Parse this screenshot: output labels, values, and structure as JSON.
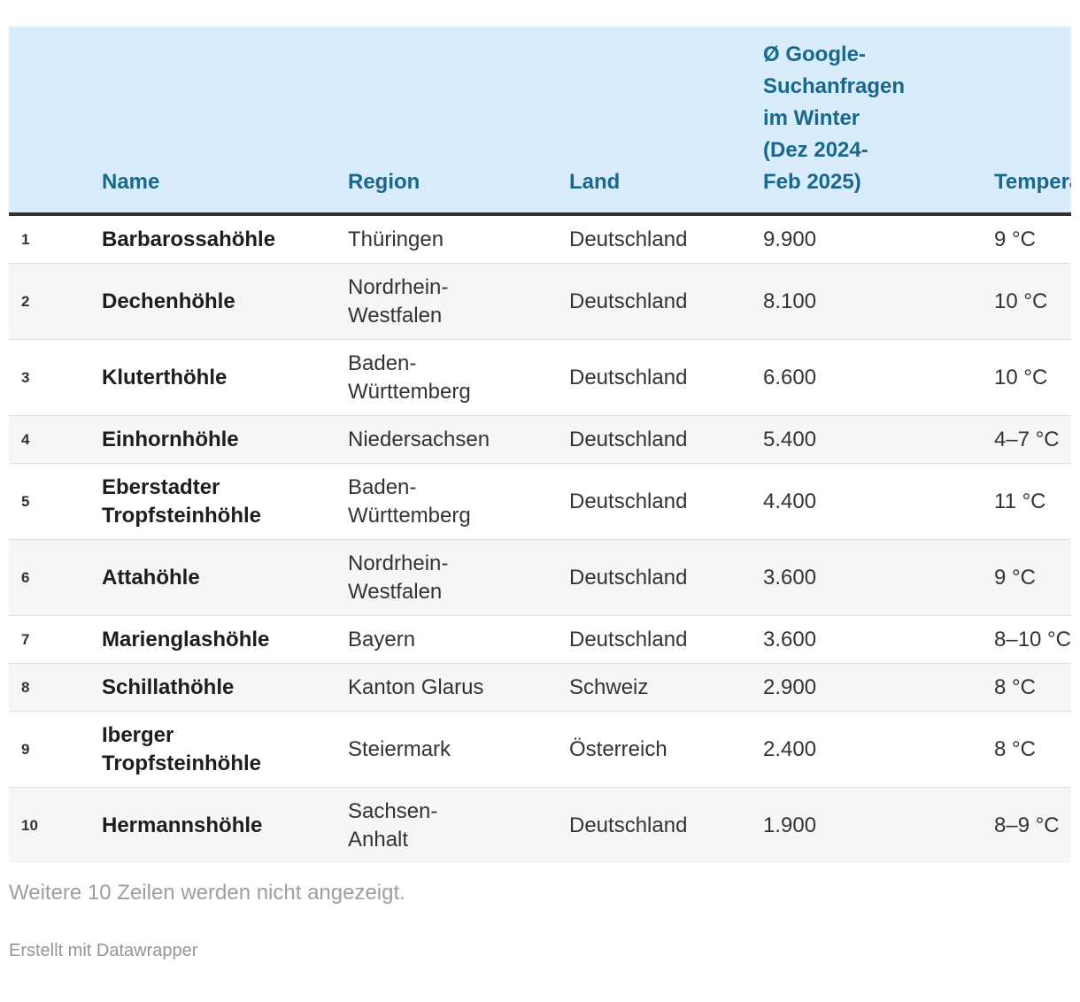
{
  "table": {
    "columns": [
      {
        "key": "rank",
        "label": ""
      },
      {
        "key": "name",
        "label": "Name"
      },
      {
        "key": "region",
        "label": "Region"
      },
      {
        "key": "land",
        "label": "Land"
      },
      {
        "key": "searches",
        "label": "Ø Google-\nSuchanfragen\nim Winter\n(Dez 2024-\nFeb 2025)"
      },
      {
        "key": "temp",
        "label": "Temperatur"
      }
    ],
    "rows": [
      {
        "rank": "1",
        "name": "Barbarossahöhle",
        "region": "Thüringen",
        "land": "Deutschland",
        "searches": "9.900",
        "temp": "9 °C"
      },
      {
        "rank": "2",
        "name": "Dechenhöhle",
        "region": "Nordrhein-\nWestfalen",
        "land": "Deutschland",
        "searches": "8.100",
        "temp": "10 °C"
      },
      {
        "rank": "3",
        "name": "Kluterthöhle",
        "region": "Baden-\nWürttemberg",
        "land": "Deutschland",
        "searches": "6.600",
        "temp": "10 °C"
      },
      {
        "rank": "4",
        "name": "Einhornhöhle",
        "region": "Niedersachsen",
        "land": "Deutschland",
        "searches": "5.400",
        "temp": "4–7 °C"
      },
      {
        "rank": "5",
        "name": "Eberstadter\nTropfsteinhöhle",
        "region": "Baden-\nWürttemberg",
        "land": "Deutschland",
        "searches": "4.400",
        "temp": "11 °C"
      },
      {
        "rank": "6",
        "name": "Attahöhle",
        "region": "Nordrhein-\nWestfalen",
        "land": "Deutschland",
        "searches": "3.600",
        "temp": "9 °C"
      },
      {
        "rank": "7",
        "name": "Marienglashöhle",
        "region": "Bayern",
        "land": "Deutschland",
        "searches": "3.600",
        "temp": "8–10 °C"
      },
      {
        "rank": "8",
        "name": "Schillathöhle",
        "region": "Kanton Glarus",
        "land": "Schweiz",
        "searches": "2.900",
        "temp": "8 °C"
      },
      {
        "rank": "9",
        "name": "Iberger\nTropfsteinhöhle",
        "region": "Steiermark",
        "land": "Österreich",
        "searches": "2.400",
        "temp": "8 °C"
      },
      {
        "rank": "10",
        "name": "Hermannshöhle",
        "region": "Sachsen-\nAnhalt",
        "land": "Deutschland",
        "searches": "1.900",
        "temp": "8–9 °C"
      }
    ]
  },
  "footer": {
    "note": "Weitere 10 Zeilen werden nicht angezeigt.",
    "credit": "Erstellt mit Datawrapper"
  },
  "colors": {
    "header_bg": "#d9ecfb",
    "header_text": "#19678c",
    "header_border": "#2f2f2f",
    "row_alt_bg": "#f6f6f6",
    "row_border": "#dedede",
    "text": "#333333",
    "name_text": "#1d1d1d",
    "muted": "#9e9e9e",
    "credit": "#959595"
  },
  "chart_data": {
    "type": "table",
    "title": "",
    "columns": [
      "Name",
      "Region",
      "Land",
      "Ø Google-Suchanfragen im Winter (Dez 2024-Feb 2025)",
      "Temperatur"
    ],
    "rows": [
      [
        "Barbarossahöhle",
        "Thüringen",
        "Deutschland",
        9900,
        "9 °C"
      ],
      [
        "Dechenhöhle",
        "Nordrhein-Westfalen",
        "Deutschland",
        8100,
        "10 °C"
      ],
      [
        "Kluterthöhle",
        "Baden-Württemberg",
        "Deutschland",
        6600,
        "10 °C"
      ],
      [
        "Einhornhöhle",
        "Niedersachsen",
        "Deutschland",
        5400,
        "4–7 °C"
      ],
      [
        "Eberstadter Tropfsteinhöhle",
        "Baden-Württemberg",
        "Deutschland",
        4400,
        "11 °C"
      ],
      [
        "Attahöhle",
        "Nordrhein-Westfalen",
        "Deutschland",
        3600,
        "9 °C"
      ],
      [
        "Marienglashöhle",
        "Bayern",
        "Deutschland",
        3600,
        "8–10 °C"
      ],
      [
        "Schillathöhle",
        "Kanton Glarus",
        "Schweiz",
        2900,
        "8 °C"
      ],
      [
        "Iberger Tropfsteinhöhle",
        "Steiermark",
        "Österreich",
        2400,
        "8 °C"
      ],
      [
        "Hermannshöhle",
        "Sachsen-Anhalt",
        "Deutschland",
        1900,
        "8–9 °C"
      ]
    ],
    "notes": [
      "Weitere 10 Zeilen werden nicht angezeigt.",
      "Erstellt mit Datawrapper"
    ]
  }
}
